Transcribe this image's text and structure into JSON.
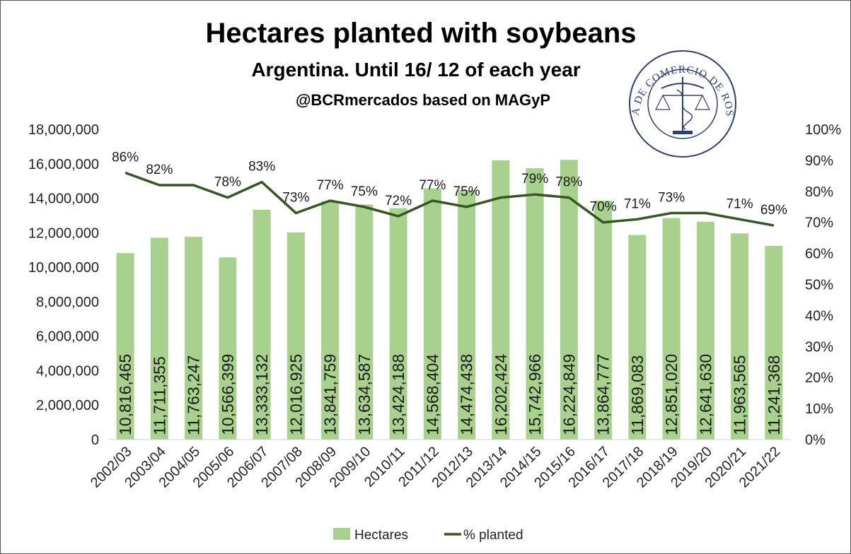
{
  "chart_data": {
    "type": "bar",
    "title": "Hectares planted with soybeans",
    "subtitle": "Argentina. Until 16/ 12 of each year",
    "source": "@BCRmercados based on MAGyP",
    "categories": [
      "2002/03",
      "2003/04",
      "2004/05",
      "2005/06",
      "2006/07",
      "2007/08",
      "2008/09",
      "2009/10",
      "2010/11",
      "2011/12",
      "2012/13",
      "2013/14",
      "2014/15",
      "2015/16",
      "2016/17",
      "2017/18",
      "2018/19",
      "2019/20",
      "2020/21",
      "2021/22"
    ],
    "series": [
      {
        "name": "Hectares",
        "type": "bar",
        "axis": "left",
        "color": "#a9d18e",
        "values": [
          10816465,
          11711355,
          11763247,
          10566399,
          13333132,
          12016925,
          13841759,
          13634587,
          13424188,
          14568404,
          14474438,
          16202424,
          15742966,
          16224849,
          13864777,
          11869083,
          12851020,
          12641630,
          11963565,
          11241368
        ],
        "labels": [
          "10,816,465",
          "11,711,355",
          "11,763,247",
          "10,566,399",
          "13,333,132",
          "12,016,925",
          "13,841,759",
          "13,634,587",
          "13,424,188",
          "14,568,404",
          "14,474,438",
          "16,202,424",
          "15,742,966",
          "16,224,849",
          "13,864,777",
          "11,869,083",
          "12,851,020",
          "12,641,630",
          "11,963,565",
          "11,241,368"
        ]
      },
      {
        "name": "% planted",
        "type": "line",
        "axis": "right",
        "color": "#375623",
        "values": [
          86,
          82,
          82,
          78,
          83,
          73,
          77,
          75,
          72,
          77,
          75,
          78,
          79,
          78,
          70,
          71,
          73,
          73,
          71,
          69
        ],
        "labels": [
          "86%",
          "82%",
          "",
          "78%",
          "83%",
          "73%",
          "77%",
          "75%",
          "72%",
          "77%",
          "75%",
          "",
          "79%",
          "78%",
          "70%",
          "71%",
          "73%",
          "",
          "71%",
          "69%"
        ]
      }
    ],
    "y_left": {
      "ylim": [
        0,
        18000000
      ],
      "ticks": [
        "0",
        "2,000,000",
        "4,000,000",
        "6,000,000",
        "8,000,000",
        "10,000,000",
        "12,000,000",
        "14,000,000",
        "16,000,000",
        "18,000,000"
      ]
    },
    "y_right": {
      "ylim": [
        0,
        100
      ],
      "ticks": [
        "0%",
        "10%",
        "20%",
        "30%",
        "40%",
        "50%",
        "60%",
        "70%",
        "80%",
        "90%",
        "100%"
      ]
    },
    "grid": false,
    "legend": {
      "placement": "bottom",
      "items": [
        "Hectares",
        "% planted"
      ]
    },
    "logo": {
      "text": "BOLSA DE COMERCIO DE ROSARIO"
    }
  }
}
